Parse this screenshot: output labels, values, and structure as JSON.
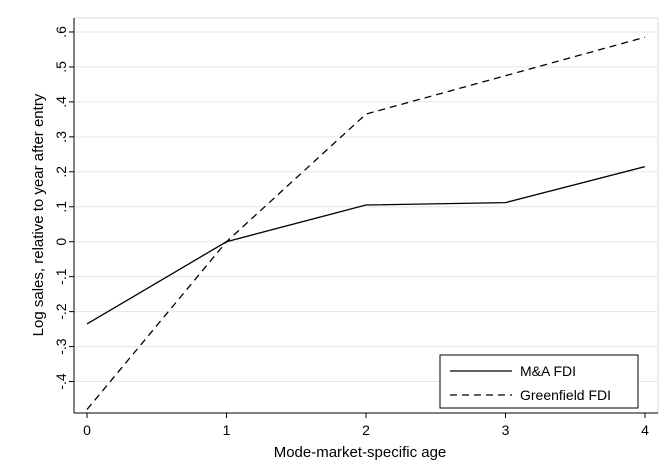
{
  "chart_data": {
    "type": "line",
    "title": "",
    "xlabel": "Mode-market-specific age",
    "ylabel": "Log sales, relative to year after entry",
    "x": [
      0,
      1,
      2,
      3,
      4
    ],
    "xticks": [
      "0",
      "1",
      "2",
      "3",
      "4"
    ],
    "xlim": [
      0,
      4
    ],
    "yticks": [
      {
        "value": -0.4,
        "label": "-.4"
      },
      {
        "value": -0.3,
        "label": "-.3"
      },
      {
        "value": -0.2,
        "label": "-.2"
      },
      {
        "value": -0.1,
        "label": "-.1"
      },
      {
        "value": 0,
        "label": "0"
      },
      {
        "value": 0.1,
        "label": ".1"
      },
      {
        "value": 0.2,
        "label": ".2"
      },
      {
        "value": 0.3,
        "label": ".3"
      },
      {
        "value": 0.4,
        "label": ".4"
      },
      {
        "value": 0.5,
        "label": ".5"
      },
      {
        "value": 0.6,
        "label": ".6"
      }
    ],
    "ylim": [
      -0.49,
      0.64
    ],
    "grid": true,
    "legend_position": "bottom-right",
    "series": [
      {
        "name": "M&A FDI",
        "style": "solid",
        "color": "#000000",
        "values": [
          -0.235,
          0.0,
          0.105,
          0.112,
          0.215
        ]
      },
      {
        "name": "Greenfield FDI",
        "style": "dashed",
        "color": "#000000",
        "values": [
          -0.48,
          0.0,
          0.365,
          0.475,
          0.585
        ]
      }
    ]
  }
}
